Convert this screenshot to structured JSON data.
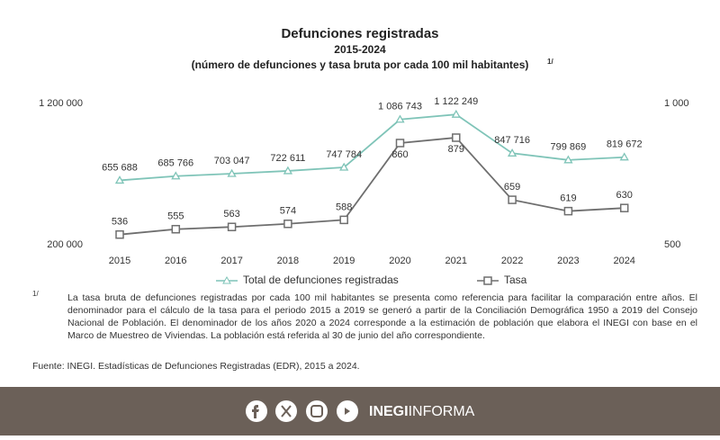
{
  "chart_data": {
    "type": "line",
    "title": "Defunciones registradas",
    "subtitle": "2015-2024",
    "description": "(número de defunciones y tasa bruta por cada 100 mil habitantes)",
    "note_ref": "1/",
    "categories": [
      "2015",
      "2016",
      "2017",
      "2018",
      "2019",
      "2020",
      "2021",
      "2022",
      "2023",
      "2024"
    ],
    "series": [
      {
        "name": "Total de defunciones registradas",
        "color": "#7fc4b8",
        "marker": "triangle",
        "values": [
          655688,
          685766,
          703047,
          722611,
          747784,
          1086743,
          1122249,
          847716,
          799869,
          819672
        ],
        "value_labels": [
          "655 688",
          "685 766",
          "703 047",
          "722 611",
          "747 784",
          "1 086 743",
          "1 122 249",
          "847 716",
          "799 869",
          "819 672"
        ]
      },
      {
        "name": "Tasa",
        "color": "#6e6e6e",
        "marker": "square",
        "axis": "y2",
        "values": [
          536,
          555,
          563,
          574,
          588,
          860,
          879,
          659,
          619,
          630
        ]
      }
    ],
    "ylim": [
      200000,
      1200000
    ],
    "yticks": [
      {
        "value": 200000,
        "label": "200 000"
      },
      {
        "value": 1200000,
        "label": "1 200 000"
      }
    ],
    "y2lim": [
      500,
      1000
    ],
    "y2ticks": [
      500,
      {
        "value": 1000,
        "label": "1 000"
      }
    ],
    "grid": false,
    "legend": "bottom",
    "footnote_ref": "1/",
    "footnote": "La tasa bruta de defunciones registradas por cada 100 mil habitantes se presenta como referencia para facilitar la comparación entre años. El denominador para el cálculo de la tasa para el periodo 2015 a 2019 se generó a partir de la Conciliación Demográfica 1950 a 2019 del Consejo Nacional de Población. El denominador de los años 2020 a 2024 corresponde a la estimación de población que elabora el INEGI con base en el Marco de Muestreo de Viviendas. La población está referida al 30 de junio del año correspondiente.",
    "source": "Fuente: INEGI. Estadísticas de Defunciones Registradas (EDR), 2015 a 2024."
  },
  "footer": {
    "brand_bold": "INEGI",
    "brand_rest": "INFORMA"
  }
}
